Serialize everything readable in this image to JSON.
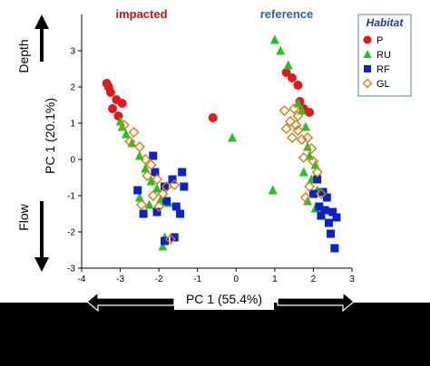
{
  "chart_data": {
    "type": "scatter",
    "xlabel": "PC 1 (55.4%)",
    "ylabel": "PC 1 (20.1%)",
    "xlim": [
      -4,
      3
    ],
    "ylim": [
      -3,
      4
    ],
    "x_ticks": [
      -4,
      -3,
      -2,
      -1,
      0,
      1,
      2,
      3
    ],
    "y_ticks": [
      -3,
      -2,
      -1,
      0,
      1,
      2,
      3
    ],
    "grid": false,
    "legend": {
      "title": "Habitat",
      "position": "top-right",
      "title_color": "#1a3aa8",
      "border_color": "#5a7fd6"
    },
    "annotations": {
      "impacted": {
        "text": "impacted",
        "color": "#cc1111"
      },
      "reference": {
        "text": "reference",
        "color": "#2b62b8"
      },
      "depth": "Depth",
      "flow": "Flow"
    },
    "series": [
      {
        "name": "P",
        "marker": "circle",
        "color": "#e31a1c",
        "points": [
          {
            "x": -3.35,
            "y": 2.1
          },
          {
            "x": -3.3,
            "y": 2.0
          },
          {
            "x": -3.25,
            "y": 1.85
          },
          {
            "x": -3.1,
            "y": 1.65
          },
          {
            "x": -2.95,
            "y": 1.55
          },
          {
            "x": -3.2,
            "y": 1.4
          },
          {
            "x": -3.05,
            "y": 1.2
          },
          {
            "x": -0.6,
            "y": 1.15
          },
          {
            "x": 1.3,
            "y": 2.4
          },
          {
            "x": 1.45,
            "y": 2.25
          },
          {
            "x": 1.6,
            "y": 2.05
          },
          {
            "x": 1.75,
            "y": 1.4
          },
          {
            "x": 1.9,
            "y": 1.3
          },
          {
            "x": 1.65,
            "y": 1.6
          }
        ]
      },
      {
        "name": "RU",
        "marker": "triangle",
        "color": "#22c322",
        "points": [
          {
            "x": 1.0,
            "y": 3.3
          },
          {
            "x": 1.15,
            "y": 3.0
          },
          {
            "x": 1.35,
            "y": 2.6
          },
          {
            "x": -3.0,
            "y": 1.05
          },
          {
            "x": -2.95,
            "y": 0.9
          },
          {
            "x": -2.85,
            "y": 0.7
          },
          {
            "x": -2.7,
            "y": 0.45
          },
          {
            "x": -2.5,
            "y": 0.1
          },
          {
            "x": -2.35,
            "y": -0.25
          },
          {
            "x": -2.2,
            "y": -0.6
          },
          {
            "x": -2.05,
            "y": -0.8
          },
          {
            "x": -2.5,
            "y": -1.05
          },
          {
            "x": -2.25,
            "y": -1.25
          },
          {
            "x": -1.95,
            "y": -1.1
          },
          {
            "x": -1.75,
            "y": -1.2
          },
          {
            "x": -1.85,
            "y": -2.15
          },
          {
            "x": -1.9,
            "y": -2.4
          },
          {
            "x": -0.1,
            "y": 0.6
          },
          {
            "x": 0.95,
            "y": -0.85
          },
          {
            "x": 1.6,
            "y": 1.55
          },
          {
            "x": 1.7,
            "y": 1.35
          },
          {
            "x": 1.8,
            "y": 0.9
          },
          {
            "x": 1.85,
            "y": 0.35
          },
          {
            "x": 1.9,
            "y": 0.1
          },
          {
            "x": 2.05,
            "y": -0.15
          },
          {
            "x": 1.75,
            "y": -0.35
          },
          {
            "x": 1.95,
            "y": -0.55
          },
          {
            "x": 2.1,
            "y": -0.85
          },
          {
            "x": 1.85,
            "y": -1.15
          },
          {
            "x": 2.05,
            "y": -1.35
          },
          {
            "x": 2.2,
            "y": -1.5
          }
        ]
      },
      {
        "name": "RF",
        "marker": "square",
        "color": "#0a22c8",
        "points": [
          {
            "x": -2.15,
            "y": 0.1
          },
          {
            "x": -2.1,
            "y": -0.35
          },
          {
            "x": -2.55,
            "y": -0.85
          },
          {
            "x": -1.85,
            "y": -0.75
          },
          {
            "x": -1.65,
            "y": -0.55
          },
          {
            "x": -1.4,
            "y": -0.35
          },
          {
            "x": -1.35,
            "y": -0.75
          },
          {
            "x": -1.8,
            "y": -1.15
          },
          {
            "x": -1.55,
            "y": -1.3
          },
          {
            "x": -1.45,
            "y": -1.5
          },
          {
            "x": -2.4,
            "y": -1.5
          },
          {
            "x": -2.05,
            "y": -1.45
          },
          {
            "x": -1.85,
            "y": -2.25
          },
          {
            "x": -1.6,
            "y": -2.15
          },
          {
            "x": 2.1,
            "y": -0.55
          },
          {
            "x": 2.25,
            "y": -0.9
          },
          {
            "x": 2.0,
            "y": -0.95
          },
          {
            "x": 2.15,
            "y": -1.3
          },
          {
            "x": 2.35,
            "y": -1.05
          },
          {
            "x": 2.3,
            "y": -1.4
          },
          {
            "x": 2.5,
            "y": -1.45
          },
          {
            "x": 2.6,
            "y": -1.6
          },
          {
            "x": 2.4,
            "y": -1.75
          },
          {
            "x": 2.45,
            "y": -2.05
          },
          {
            "x": 2.55,
            "y": -2.45
          },
          {
            "x": 2.2,
            "y": -1.55
          }
        ]
      },
      {
        "name": "GL",
        "marker": "diamond",
        "color": "#e07b10",
        "points": [
          {
            "x": -2.9,
            "y": 0.95
          },
          {
            "x": -2.65,
            "y": 0.75
          },
          {
            "x": -2.75,
            "y": 0.5
          },
          {
            "x": -2.5,
            "y": 0.35
          },
          {
            "x": -2.35,
            "y": 0.0
          },
          {
            "x": -2.2,
            "y": -0.15
          },
          {
            "x": -2.3,
            "y": -0.45
          },
          {
            "x": -2.05,
            "y": -0.55
          },
          {
            "x": -1.8,
            "y": -0.75
          },
          {
            "x": -1.6,
            "y": -0.7
          },
          {
            "x": -1.9,
            "y": -0.95
          },
          {
            "x": -2.45,
            "y": -1.25
          },
          {
            "x": -2.15,
            "y": -1.0
          },
          {
            "x": -2.0,
            "y": -1.3
          },
          {
            "x": -1.7,
            "y": -2.2
          },
          {
            "x": 1.25,
            "y": 1.35
          },
          {
            "x": 1.5,
            "y": 1.4
          },
          {
            "x": 1.6,
            "y": 1.2
          },
          {
            "x": 1.4,
            "y": 1.05
          },
          {
            "x": 1.3,
            "y": 0.85
          },
          {
            "x": 1.6,
            "y": 0.8
          },
          {
            "x": 1.45,
            "y": 0.6
          },
          {
            "x": 1.7,
            "y": 0.55
          },
          {
            "x": 1.85,
            "y": 0.6
          },
          {
            "x": 1.95,
            "y": 0.3
          },
          {
            "x": 2.0,
            "y": -0.05
          },
          {
            "x": 1.75,
            "y": 0.05
          },
          {
            "x": 2.1,
            "y": -0.35
          },
          {
            "x": 1.9,
            "y": -0.75
          },
          {
            "x": 2.2,
            "y": -0.95
          },
          {
            "x": 1.8,
            "y": -1.05
          },
          {
            "x": 1.55,
            "y": 0.95
          }
        ]
      }
    ]
  }
}
